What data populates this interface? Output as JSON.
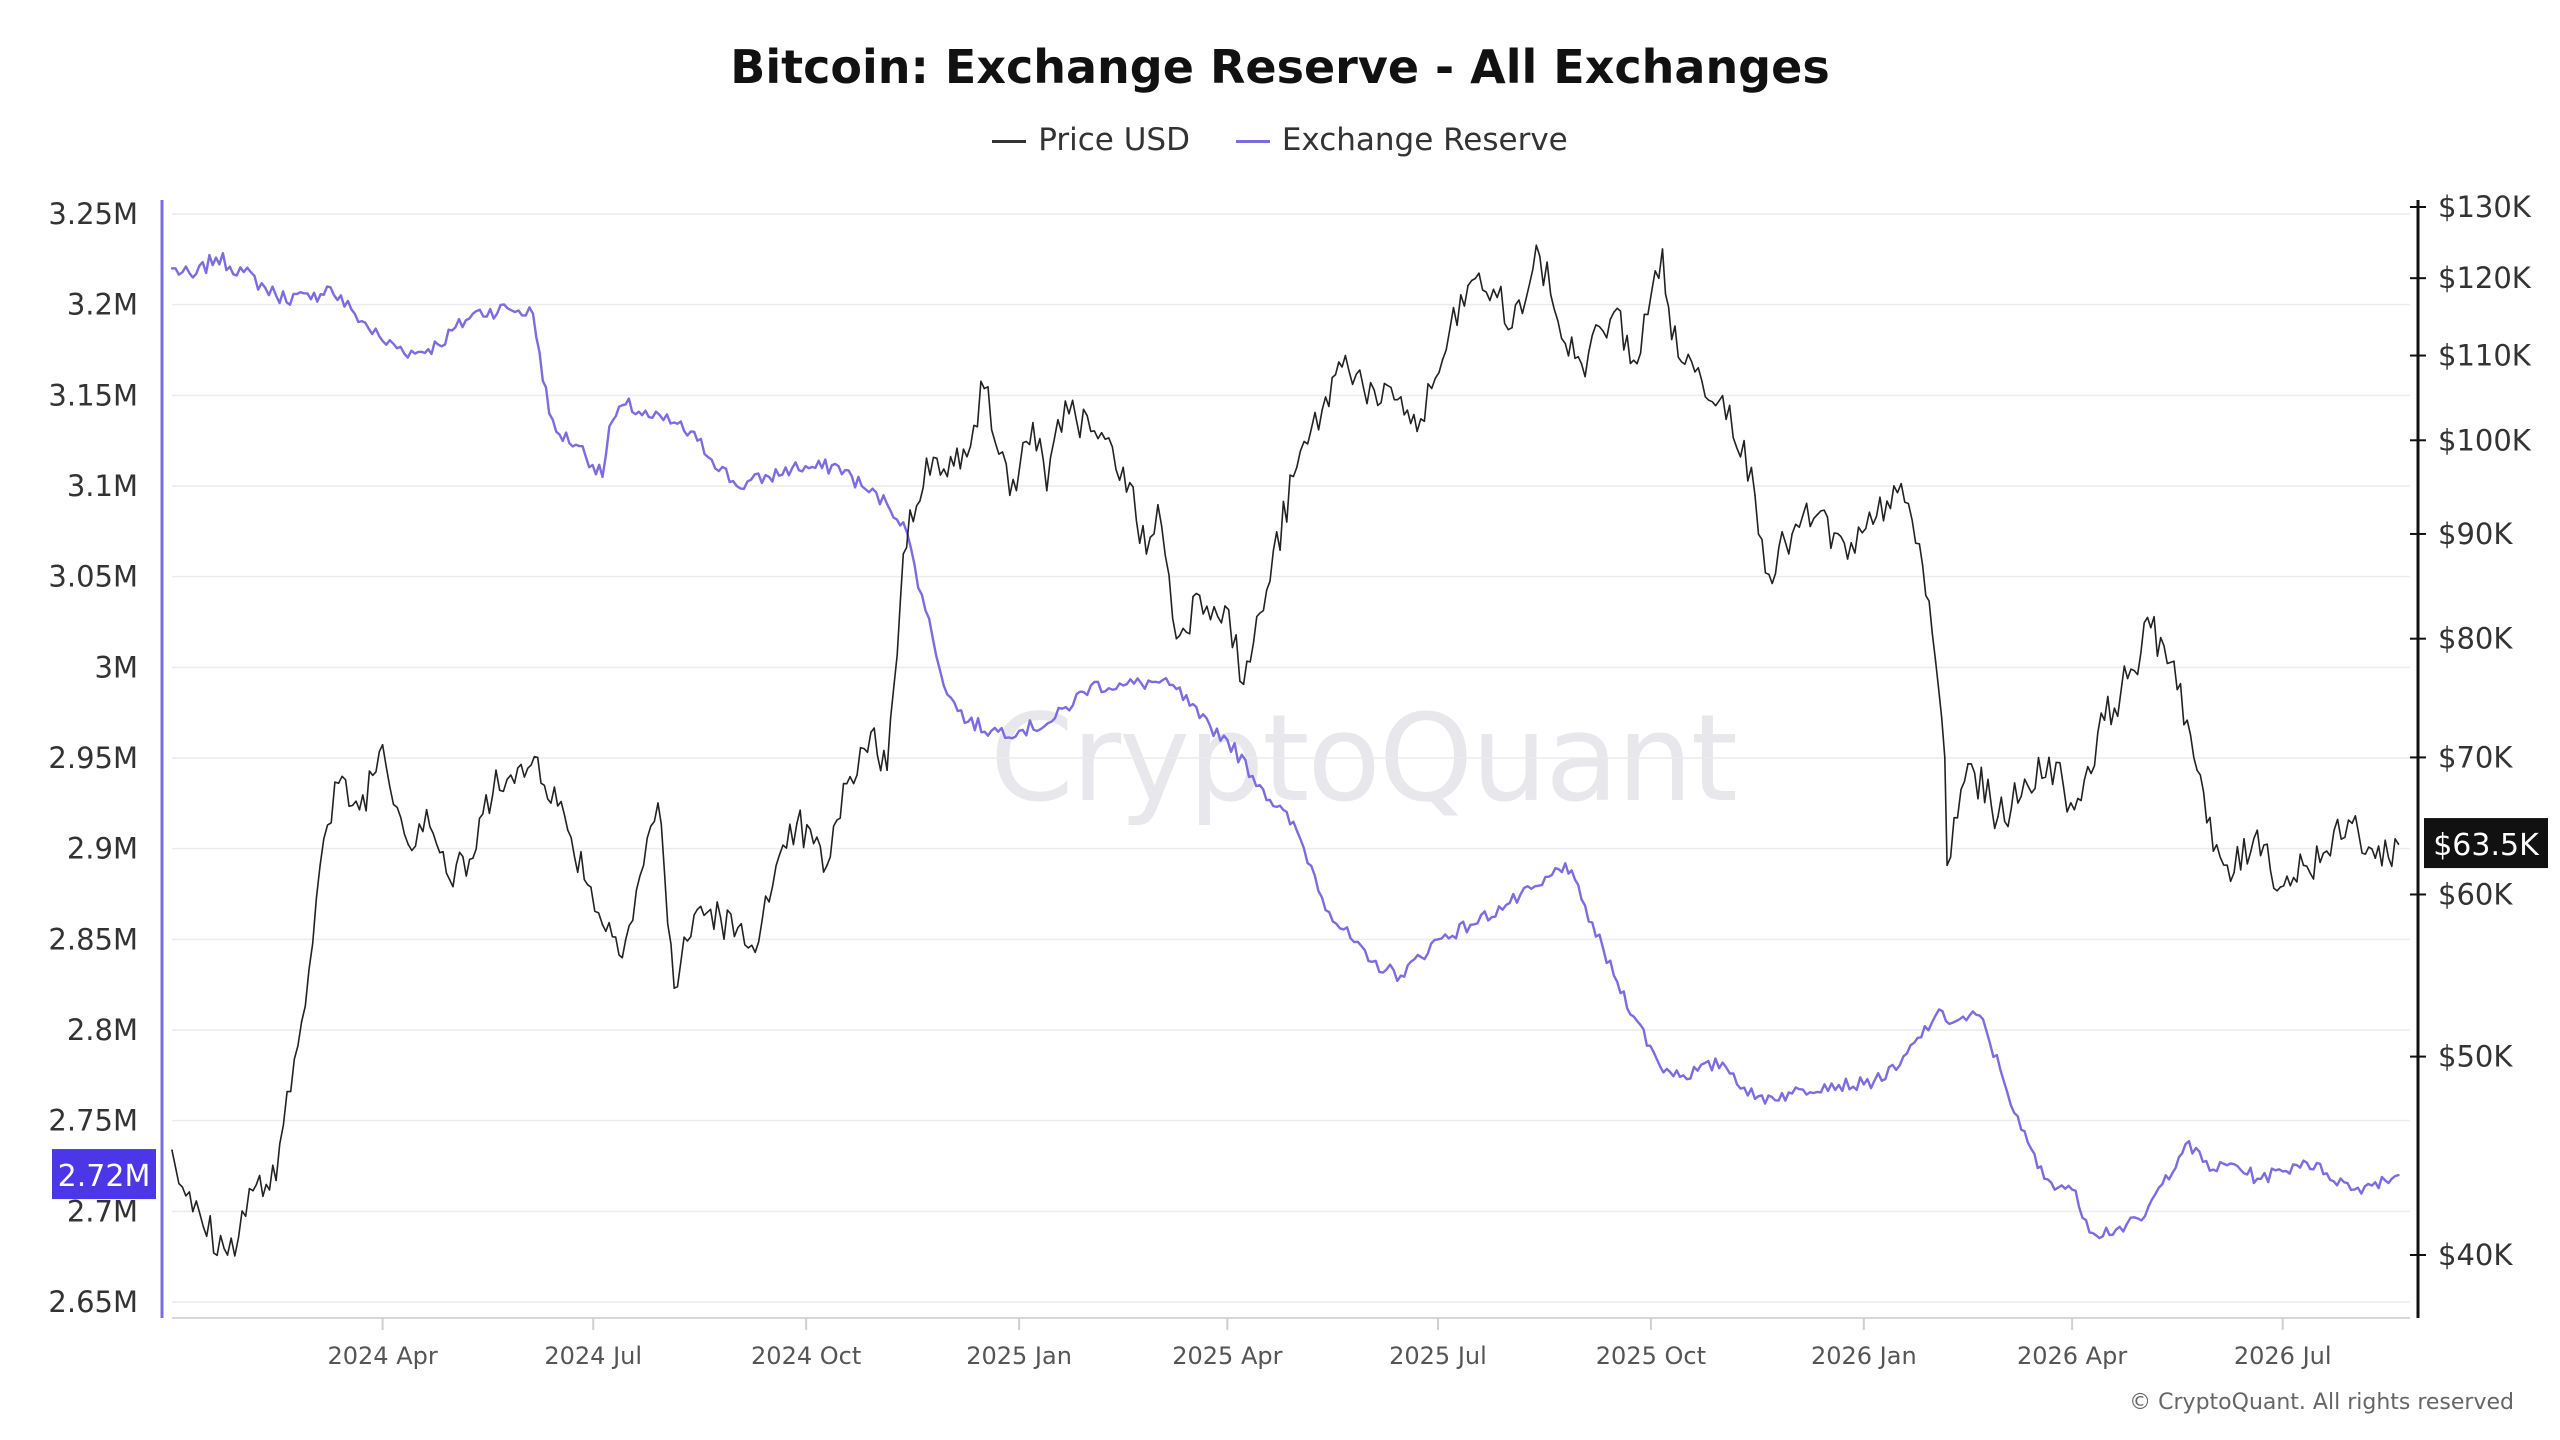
{
  "title": "Bitcoin: Exchange Reserve - All Exchanges",
  "legend": [
    {
      "label": "Price USD",
      "color": "#333333"
    },
    {
      "label": "Exchange Reserve",
      "color": "#7b6ce0"
    }
  ],
  "watermark": "CryptoQuant",
  "copyright": "© CryptoQuant. All rights reserved",
  "colors": {
    "reserve": "#7b6ce0",
    "price": "#222222",
    "reserve_badge": "#4b37e6",
    "price_badge": "#111111",
    "grid": "#ececec"
  },
  "chart_data": {
    "type": "line",
    "title": "Bitcoin: Exchange Reserve - All Exchanges",
    "x_axis": {
      "type": "date",
      "range": [
        "2024-01-01",
        "2026-08-25"
      ],
      "ticks": [
        {
          "date": "2024-04-01",
          "label": "2024 Apr"
        },
        {
          "date": "2024-07-01",
          "label": "2024 Jul"
        },
        {
          "date": "2024-10-01",
          "label": "2024 Oct"
        },
        {
          "date": "2025-01-01",
          "label": "2025 Jan"
        },
        {
          "date": "2025-04-01",
          "label": "2025 Apr"
        },
        {
          "date": "2025-07-01",
          "label": "2025 Jul"
        },
        {
          "date": "2025-10-01",
          "label": "2025 Oct"
        },
        {
          "date": "2026-01-01",
          "label": "2026 Jan"
        },
        {
          "date": "2026-04-01",
          "label": "2026 Apr"
        },
        {
          "date": "2026-07-01",
          "label": "2026 Jul"
        }
      ]
    },
    "y_left": {
      "label": "",
      "range": [
        2650000,
        3260000
      ],
      "ticks": [
        {
          "value": 3250000,
          "label": "3.25M"
        },
        {
          "value": 3200000,
          "label": "3.2M"
        },
        {
          "value": 3150000,
          "label": "3.15M"
        },
        {
          "value": 3100000,
          "label": "3.1M"
        },
        {
          "value": 3050000,
          "label": "3.05M"
        },
        {
          "value": 3000000,
          "label": "3M"
        },
        {
          "value": 2950000,
          "label": "2.95M"
        },
        {
          "value": 2900000,
          "label": "2.9M"
        },
        {
          "value": 2850000,
          "label": "2.85M"
        },
        {
          "value": 2800000,
          "label": "2.8M"
        },
        {
          "value": 2750000,
          "label": "2.75M"
        },
        {
          "value": 2700000,
          "label": "2.7M"
        },
        {
          "value": 2650000,
          "label": "2.65M"
        }
      ]
    },
    "y_right": {
      "label": "",
      "scale": "log",
      "range": [
        37000,
        130000
      ],
      "ticks": [
        {
          "value": 130000,
          "label": "$130K"
        },
        {
          "value": 120000,
          "label": "$120K"
        },
        {
          "value": 110000,
          "label": "$110K"
        },
        {
          "value": 100000,
          "label": "$100K"
        },
        {
          "value": 90000,
          "label": "$90K"
        },
        {
          "value": 80000,
          "label": "$80K"
        },
        {
          "value": 70000,
          "label": "$70K"
        },
        {
          "value": 60000,
          "label": "$60K"
        },
        {
          "value": 50000,
          "label": "$50K"
        },
        {
          "value": 40000,
          "label": "$40K"
        }
      ]
    },
    "current_values": {
      "reserve": "2.72M",
      "price": "$63.5K"
    },
    "grid": true,
    "legend_position": "top-center",
    "series": [
      {
        "name": "Price USD",
        "axis": "right",
        "x": [
          "2024-01-01",
          "2024-01-10",
          "2024-01-25",
          "2024-02-05",
          "2024-02-15",
          "2024-02-26",
          "2024-03-05",
          "2024-03-13",
          "2024-03-22",
          "2024-04-01",
          "2024-04-12",
          "2024-04-20",
          "2024-04-30",
          "2024-05-10",
          "2024-05-20",
          "2024-05-28",
          "2024-06-07",
          "2024-06-20",
          "2024-06-30",
          "2024-07-05",
          "2024-07-15",
          "2024-07-29",
          "2024-08-05",
          "2024-08-15",
          "2024-08-25",
          "2024-09-06",
          "2024-09-15",
          "2024-09-27",
          "2024-10-10",
          "2024-10-20",
          "2024-10-29",
          "2024-11-05",
          "2024-11-08",
          "2024-11-12",
          "2024-11-22",
          "2024-12-01",
          "2024-12-08",
          "2024-12-17",
          "2024-12-28",
          "2025-01-07",
          "2025-01-13",
          "2025-01-21",
          "2025-02-01",
          "2025-02-15",
          "2025-02-25",
          "2025-03-02",
          "2025-03-10",
          "2025-03-20",
          "2025-03-31",
          "2025-04-08",
          "2025-04-18",
          "2025-05-01",
          "2025-05-12",
          "2025-05-22",
          "2025-06-05",
          "2025-06-15",
          "2025-06-22",
          "2025-07-03",
          "2025-07-14",
          "2025-07-25",
          "2025-08-02",
          "2025-08-14",
          "2025-08-25",
          "2025-09-01",
          "2025-09-15",
          "2025-09-25",
          "2025-10-06",
          "2025-10-10",
          "2025-10-20",
          "2025-11-04",
          "2025-11-15",
          "2025-11-21",
          "2025-12-01",
          "2025-12-12",
          "2025-12-25",
          "2026-01-05",
          "2026-01-14",
          "2026-01-25",
          "2026-02-01",
          "2026-02-05",
          "2026-02-06",
          "2026-02-15",
          "2026-02-28",
          "2026-03-10",
          "2026-03-22",
          "2026-04-02",
          "2026-04-15",
          "2026-04-25",
          "2026-05-05",
          "2026-05-15",
          "2026-05-25",
          "2026-06-01",
          "2026-06-10",
          "2026-06-20",
          "2026-06-30",
          "2026-07-10",
          "2026-07-20",
          "2026-07-31",
          "2026-08-10",
          "2026-08-20"
        ],
        "values": [
          45000,
          42000,
          40000,
          43000,
          43500,
          52000,
          62000,
          68000,
          66000,
          71000,
          63500,
          66000,
          61000,
          62500,
          69000,
          68000,
          70000,
          64500,
          60500,
          58000,
          57000,
          66500,
          54000,
          59000,
          58500,
          56500,
          59500,
          65000,
          62000,
          68500,
          72000,
          69000,
          76000,
          88000,
          98000,
          96000,
          99000,
          106000,
          94000,
          102000,
          94500,
          104500,
          101000,
          97000,
          88000,
          93000,
          80000,
          84000,
          83000,
          76000,
          84500,
          97000,
          103500,
          110000,
          104000,
          105000,
          101000,
          109500,
          119000,
          118500,
          113500,
          123000,
          111500,
          109000,
          115500,
          109000,
          124000,
          112000,
          108000,
          104000,
          94000,
          86000,
          90000,
          92000,
          87500,
          91000,
          95000,
          89000,
          78000,
          70000,
          62000,
          69500,
          65500,
          67000,
          70000,
          66000,
          73000,
          76500,
          81000,
          78000,
          69000,
          63000,
          61500,
          64500,
          60500,
          62000,
          63000,
          65000,
          62500,
          63500
        ]
      },
      {
        "name": "Exchange Reserve",
        "axis": "left",
        "x": [
          "2024-01-01",
          "2024-01-10",
          "2024-01-20",
          "2024-02-01",
          "2024-02-15",
          "2024-03-01",
          "2024-03-08",
          "2024-03-20",
          "2024-04-01",
          "2024-04-15",
          "2024-04-25",
          "2024-05-10",
          "2024-05-25",
          "2024-06-05",
          "2024-06-12",
          "2024-06-15",
          "2024-06-25",
          "2024-07-05",
          "2024-07-08",
          "2024-07-15",
          "2024-07-25",
          "2024-08-05",
          "2024-08-15",
          "2024-09-01",
          "2024-09-15",
          "2024-09-25",
          "2024-10-05",
          "2024-10-15",
          "2024-10-25",
          "2024-11-05",
          "2024-11-12",
          "2024-11-20",
          "2024-12-01",
          "2024-12-10",
          "2024-12-20",
          "2025-01-01",
          "2025-01-15",
          "2025-02-01",
          "2025-02-15",
          "2025-03-01",
          "2025-03-10",
          "2025-03-20",
          "2025-04-01",
          "2025-04-15",
          "2025-05-01",
          "2025-05-15",
          "2025-06-01",
          "2025-06-15",
          "2025-07-01",
          "2025-07-15",
          "2025-08-01",
          "2025-08-15",
          "2025-08-25",
          "2025-09-01",
          "2025-09-15",
          "2025-09-25",
          "2025-10-05",
          "2025-10-15",
          "2025-11-01",
          "2025-11-15",
          "2025-12-01",
          "2025-12-15",
          "2026-01-01",
          "2026-01-15",
          "2026-02-01",
          "2026-02-10",
          "2026-02-20",
          "2026-03-01",
          "2026-03-10",
          "2026-03-20",
          "2026-04-01",
          "2026-04-10",
          "2026-04-20",
          "2026-05-01",
          "2026-05-10",
          "2026-05-20",
          "2026-06-01",
          "2026-06-10",
          "2026-06-20",
          "2026-07-01",
          "2026-07-10",
          "2026-07-20",
          "2026-08-01",
          "2026-08-10",
          "2026-08-20"
        ],
        "values": [
          3220000,
          3215000,
          3226000,
          3218000,
          3205000,
          3203000,
          3210000,
          3195000,
          3180000,
          3173000,
          3178000,
          3195000,
          3198000,
          3195000,
          3140000,
          3130000,
          3122000,
          3105000,
          3133000,
          3145000,
          3138000,
          3135000,
          3125000,
          3100000,
          3105000,
          3110000,
          3110000,
          3111000,
          3100000,
          3090000,
          3080000,
          3040000,
          2985000,
          2970000,
          2965000,
          2965000,
          2970000,
          2990000,
          2990000,
          2992000,
          2988000,
          2972000,
          2960000,
          2935000,
          2910000,
          2865000,
          2838000,
          2830000,
          2850000,
          2858000,
          2870000,
          2880000,
          2892000,
          2872000,
          2830000,
          2805000,
          2780000,
          2775000,
          2782000,
          2762000,
          2765000,
          2770000,
          2770000,
          2778000,
          2808000,
          2805000,
          2808000,
          2778000,
          2745000,
          2718000,
          2712000,
          2688000,
          2690000,
          2695000,
          2715000,
          2737000,
          2723000,
          2726000,
          2718000,
          2722000,
          2728000,
          2721000,
          2712000,
          2716000,
          2720000
        ]
      }
    ]
  }
}
